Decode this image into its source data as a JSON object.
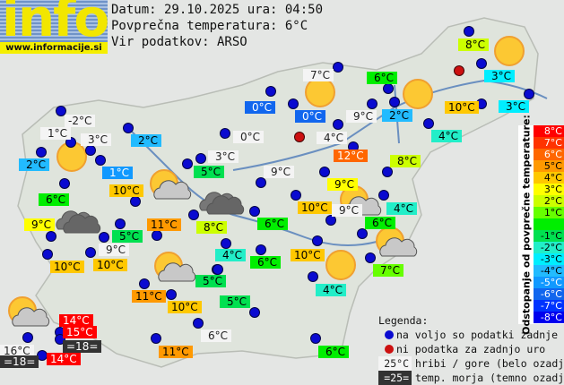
{
  "header": {
    "logo_text": "info",
    "site": "www.informacije.si",
    "date_line": "Datum: 29.10.2025 ura: 04:50",
    "avg_line": "Povprečna temperatura: 6°C",
    "source_line": "Vir podatkov: ARSO"
  },
  "average_temperature": 6,
  "colors": {
    "available": "#0a0ad0",
    "missing": "#cc1010",
    "mountain_bg": "#f4f4f4",
    "sea_bg": "#333333"
  },
  "scale": {
    "title": "Odstopanje od povprečne temperature:",
    "steps": [
      {
        "label": "8°C",
        "color": "#ff0000",
        "text": "#fff"
      },
      {
        "label": "7°C",
        "color": "#ff3300",
        "text": "#fff"
      },
      {
        "label": "6°C",
        "color": "#ff6600",
        "text": "#fff"
      },
      {
        "label": "5°C",
        "color": "#ff9900",
        "text": "#000"
      },
      {
        "label": "4°C",
        "color": "#ffc800",
        "text": "#000"
      },
      {
        "label": "3°C",
        "color": "#ffff00",
        "text": "#000"
      },
      {
        "label": "2°C",
        "color": "#ccff00",
        "text": "#000"
      },
      {
        "label": "1°C",
        "color": "#66ff00",
        "text": "#000"
      },
      {
        "label": "",
        "color": "#00ee00",
        "text": "#000"
      },
      {
        "label": "-1°C",
        "color": "#00e050",
        "text": "#000"
      },
      {
        "label": "-2°C",
        "color": "#22eec8",
        "text": "#000"
      },
      {
        "label": "-3°C",
        "color": "#00eeff",
        "text": "#000"
      },
      {
        "label": "-4°C",
        "color": "#22bbff",
        "text": "#000"
      },
      {
        "label": "-5°C",
        "color": "#1199ff",
        "text": "#fff"
      },
      {
        "label": "-6°C",
        "color": "#1166ee",
        "text": "#fff"
      },
      {
        "label": "-7°C",
        "color": "#0033ff",
        "text": "#fff"
      },
      {
        "label": "-8°C",
        "color": "#0000ee",
        "text": "#fff"
      }
    ]
  },
  "legend": {
    "title": "Legenda:",
    "available": "na voljo so podatki zadnje ure",
    "missing": "ni podatka za zadnjo uro",
    "mountain_sample": "25°C",
    "mountain": "hribi / gore (belo ozadje)",
    "sea_sample": "=25=",
    "sea": "temp. morja (temno ozadje)"
  },
  "readings": [
    {
      "text": "8°C",
      "value": 8,
      "type": "station"
    },
    {
      "text": "7°C",
      "value": 7,
      "type": "mountain"
    },
    {
      "text": "6°C",
      "value": 6,
      "type": "station"
    },
    {
      "text": "3°C",
      "value": 3,
      "type": "station"
    },
    {
      "text": "3°C",
      "value": 3,
      "type": "station"
    },
    {
      "text": "10°C",
      "value": 10,
      "type": "station"
    },
    {
      "text": "0°C",
      "value": 0,
      "type": "station"
    },
    {
      "text": "0°C",
      "value": 0,
      "type": "station"
    },
    {
      "text": "9°C",
      "value": 9,
      "type": "mountain"
    },
    {
      "text": "2°C",
      "value": 2,
      "type": "station"
    },
    {
      "text": "-2°C",
      "value": -2,
      "type": "mountain"
    },
    {
      "text": "1°C",
      "value": 1,
      "type": "mountain"
    },
    {
      "text": "3°C",
      "value": 3,
      "type": "mountain"
    },
    {
      "text": "2°C",
      "value": 2,
      "type": "station"
    },
    {
      "text": "0°C",
      "value": 0,
      "type": "mountain"
    },
    {
      "text": "4°C",
      "value": 4,
      "type": "mountain"
    },
    {
      "text": "4°C",
      "value": 4,
      "type": "station"
    },
    {
      "text": "2°C",
      "value": 2,
      "type": "station"
    },
    {
      "text": "12°C",
      "value": 12,
      "type": "station"
    },
    {
      "text": "3°C",
      "value": 3,
      "type": "mountain"
    },
    {
      "text": "1°C",
      "value": 1,
      "type": "station"
    },
    {
      "text": "8°C",
      "value": 8,
      "type": "station"
    },
    {
      "text": "5°C",
      "value": 5,
      "type": "station"
    },
    {
      "text": "9°C",
      "value": 9,
      "type": "mountain"
    },
    {
      "text": "9°C",
      "value": 9,
      "type": "station"
    },
    {
      "text": "10°C",
      "value": 10,
      "type": "station"
    },
    {
      "text": "6°C",
      "value": 6,
      "type": "station"
    },
    {
      "text": "10°C",
      "value": 10,
      "type": "station"
    },
    {
      "text": "9°C",
      "value": 9,
      "type": "mountain"
    },
    {
      "text": "4°C",
      "value": 4,
      "type": "station"
    },
    {
      "text": "9°C",
      "value": 9,
      "type": "station"
    },
    {
      "text": "11°C",
      "value": 11,
      "type": "station"
    },
    {
      "text": "8°C",
      "value": 8,
      "type": "station"
    },
    {
      "text": "6°C",
      "value": 6,
      "type": "station"
    },
    {
      "text": "6°C",
      "value": 6,
      "type": "station"
    },
    {
      "text": "5°C",
      "value": 5,
      "type": "station"
    },
    {
      "text": "9°C",
      "value": 9,
      "type": "mountain"
    },
    {
      "text": "4°C",
      "value": 4,
      "type": "station"
    },
    {
      "text": "10°C",
      "value": 10,
      "type": "station"
    },
    {
      "text": "6°C",
      "value": 6,
      "type": "station"
    },
    {
      "text": "10°C",
      "value": 10,
      "type": "station"
    },
    {
      "text": "10°C",
      "value": 10,
      "type": "station"
    },
    {
      "text": "7°C",
      "value": 7,
      "type": "station"
    },
    {
      "text": "5°C",
      "value": 5,
      "type": "station"
    },
    {
      "text": "4°C",
      "value": 4,
      "type": "station"
    },
    {
      "text": "11°C",
      "value": 11,
      "type": "station"
    },
    {
      "text": "5°C",
      "value": 5,
      "type": "station"
    },
    {
      "text": "10°C",
      "value": 10,
      "type": "station"
    },
    {
      "text": "6°C",
      "value": 6,
      "type": "mountain"
    },
    {
      "text": "11°C",
      "value": 11,
      "type": "station"
    },
    {
      "text": "6°C",
      "value": 6,
      "type": "station"
    },
    {
      "text": "14°C",
      "value": 14,
      "type": "station"
    },
    {
      "text": "15°C",
      "value": 15,
      "type": "station"
    },
    {
      "text": "=18=",
      "value": 18,
      "type": "sea"
    },
    {
      "text": "16°C",
      "value": 16,
      "type": "mountain"
    },
    {
      "text": "=18=",
      "value": 18,
      "type": "sea"
    },
    {
      "text": "14°C",
      "value": 14,
      "type": "station"
    }
  ],
  "weather_icons": [
    {
      "icon": "sun"
    },
    {
      "icon": "sun"
    },
    {
      "icon": "sun"
    },
    {
      "icon": "sun"
    },
    {
      "icon": "sun"
    },
    {
      "icon": "partly-cloudy"
    },
    {
      "icon": "partly-cloudy"
    },
    {
      "icon": "partly-cloudy"
    },
    {
      "icon": "partly-cloudy"
    },
    {
      "icon": "partly-cloudy"
    },
    {
      "icon": "cloud"
    },
    {
      "icon": "cloud"
    }
  ]
}
